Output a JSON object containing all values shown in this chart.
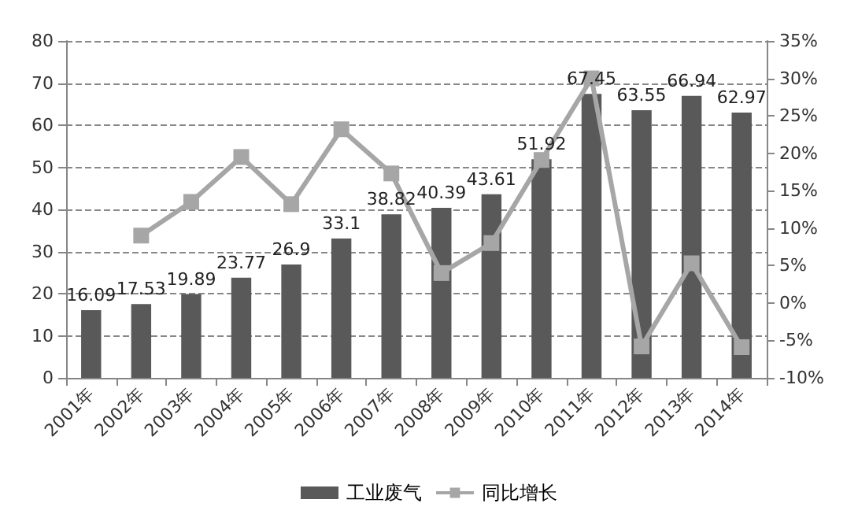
{
  "chart_data": {
    "type": "bar",
    "categories": [
      "2001年",
      "2002年",
      "2003年",
      "2004年",
      "2005年",
      "2006年",
      "2007年",
      "2008年",
      "2009年",
      "2010年",
      "2011年",
      "2012年",
      "2013年",
      "2014年"
    ],
    "series": [
      {
        "name": "工业废气",
        "color": "#595959",
        "values": [
          16.09,
          17.53,
          19.89,
          23.77,
          26.9,
          33.1,
          38.82,
          40.39,
          43.61,
          51.92,
          67.45,
          63.55,
          66.94,
          62.97
        ],
        "value_labels": [
          "16.09",
          "17.53",
          "19.89",
          "23.77",
          "26.9",
          "33.1",
          "38.82",
          "40.39",
          "43.61",
          "51.92",
          "67.45",
          "63.55",
          "66.94",
          "62.97"
        ]
      },
      {
        "name": "同比增长",
        "type": "line",
        "axis": "y2",
        "color": "#a6a6a6",
        "marker": "square",
        "values": [
          null,
          9.0,
          13.5,
          19.5,
          13.2,
          23.2,
          17.3,
          4.0,
          8.0,
          19.1,
          30.0,
          -5.8,
          5.3,
          -5.9
        ]
      }
    ],
    "ylim": [
      0,
      80
    ],
    "yticks": [
      0,
      10,
      20,
      30,
      40,
      50,
      60,
      70,
      80
    ],
    "y2lim": [
      -10,
      35
    ],
    "y2ticks": [
      {
        "value": -10,
        "label": "-10%"
      },
      {
        "value": -5,
        "label": "-5%"
      },
      {
        "value": 0,
        "label": "0%"
      },
      {
        "value": 5,
        "label": "5%"
      },
      {
        "value": 10,
        "label": "10%"
      },
      {
        "value": 15,
        "label": "15%"
      },
      {
        "value": 20,
        "label": "20%"
      },
      {
        "value": 25,
        "label": "25%"
      },
      {
        "value": 30,
        "label": "30%"
      },
      {
        "value": 35,
        "label": "35%"
      }
    ],
    "grid": "y",
    "legend": "bottom"
  }
}
